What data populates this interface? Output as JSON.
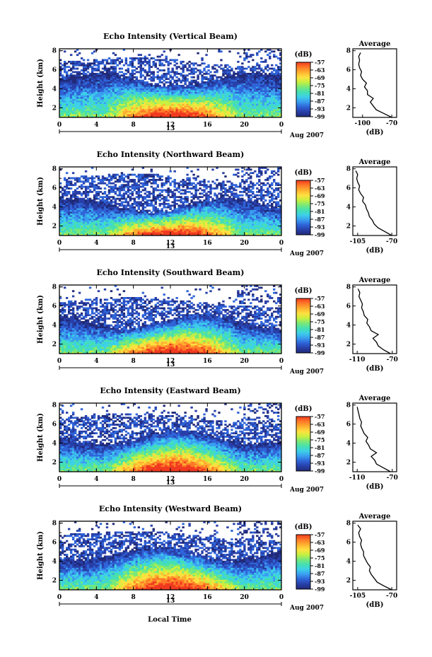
{
  "figure": {
    "xlabel": "Local Time"
  },
  "colorbar": {
    "unit": "(dB)",
    "ticks": [
      "-57",
      "-63",
      "-69",
      "-75",
      "-81",
      "-87",
      "-93",
      "-99"
    ],
    "colors": [
      "#202a78",
      "#283fa8",
      "#2f64d8",
      "#3a9ef0",
      "#3dd0e8",
      "#46e0b0",
      "#7ae878",
      "#c8f040",
      "#ffe040",
      "#ffb030",
      "#ff7a28",
      "#f03a20"
    ]
  },
  "chart_data": [
    {
      "type": "heatmap",
      "title": "Echo Intensity (Vertical Beam)",
      "ylabel": "Height (km)",
      "xticks": [
        "0",
        "4",
        "8",
        "12",
        "16",
        "20",
        "0"
      ],
      "yticks": [
        "2",
        "4",
        "6",
        "8"
      ],
      "day_label": "13",
      "date_label": "Aug 2007",
      "xlim": [
        0,
        24
      ],
      "ylim": [
        1,
        8.2
      ],
      "layers": {
        "ceil": 5.0,
        "sparse_top": 6.8
      },
      "profile": {
        "title": "Average",
        "xlabel": "(dB)",
        "xticks": [
          "-100",
          "-70"
        ],
        "xlim": [
          -110,
          -65
        ],
        "heights": [
          1.0,
          1.4,
          1.8,
          2.2,
          2.6,
          3.0,
          3.4,
          3.8,
          4.2,
          4.6,
          5.0,
          5.4,
          5.8,
          6.2,
          6.6,
          7.0,
          7.4,
          7.8
        ],
        "values": [
          -70,
          -78,
          -86,
          -89,
          -92,
          -89,
          -95,
          -95,
          -98,
          -96,
          -100,
          -102,
          -101,
          -103,
          -104,
          -103,
          -104,
          -102
        ]
      }
    },
    {
      "type": "heatmap",
      "title": "Echo Intensity (Northward Beam)",
      "ylabel": "Height (km)",
      "xticks": [
        "0",
        "4",
        "8",
        "12",
        "16",
        "20",
        "0"
      ],
      "yticks": [
        "2",
        "4",
        "6",
        "8"
      ],
      "day_label": "13",
      "date_label": "Aug 2007",
      "xlim": [
        0,
        24
      ],
      "ylim": [
        1,
        8.2
      ],
      "layers": {
        "ceil": 4.2,
        "sparse_top": 7.0
      },
      "profile": {
        "title": "Average",
        "xlabel": "(dB)",
        "xticks": [
          "-105",
          "-70"
        ],
        "xlim": [
          -110,
          -65
        ],
        "heights": [
          1.0,
          1.4,
          1.8,
          2.2,
          2.6,
          3.0,
          3.4,
          3.8,
          4.2,
          4.6,
          5.0,
          5.4,
          5.8,
          6.2,
          6.6,
          7.0,
          7.4,
          7.8
        ],
        "values": [
          -70,
          -77,
          -84,
          -88,
          -90,
          -93,
          -94,
          -96,
          -97,
          -100,
          -99,
          -102,
          -104,
          -103,
          -105,
          -106,
          -105,
          -107
        ]
      }
    },
    {
      "type": "heatmap",
      "title": "Echo Intensity (Southward Beam)",
      "ylabel": "Height (km)",
      "xticks": [
        "0",
        "4",
        "8",
        "12",
        "16",
        "20",
        "0"
      ],
      "yticks": [
        "2",
        "4",
        "6",
        "8"
      ],
      "day_label": "13",
      "date_label": "Aug 2007",
      "xlim": [
        0,
        24
      ],
      "ylim": [
        1,
        8.2
      ],
      "layers": {
        "ceil": 4.4,
        "sparse_top": 6.4
      },
      "profile": {
        "title": "Average",
        "xlabel": "(dB)",
        "xticks": [
          "-110",
          "-70"
        ],
        "xlim": [
          -115,
          -65
        ],
        "heights": [
          1.0,
          1.4,
          1.8,
          2.2,
          2.6,
          3.0,
          3.4,
          3.8,
          4.2,
          4.6,
          5.0,
          5.4,
          5.8,
          6.2,
          6.6,
          7.0,
          7.4,
          7.8
        ],
        "values": [
          -72,
          -80,
          -86,
          -88,
          -92,
          -86,
          -94,
          -96,
          -99,
          -98,
          -102,
          -103,
          -105,
          -104,
          -106,
          -108,
          -107,
          -109
        ]
      }
    },
    {
      "type": "heatmap",
      "title": "Echo Intensity (Eastward Beam)",
      "ylabel": "Height (km)",
      "xticks": [
        "0",
        "4",
        "8",
        "12",
        "16",
        "20",
        "0"
      ],
      "yticks": [
        "2",
        "4",
        "6",
        "8"
      ],
      "day_label": "13",
      "date_label": "Aug 2007",
      "xlim": [
        0,
        24
      ],
      "ylim": [
        1,
        8.2
      ],
      "layers": {
        "ceil": 4.6,
        "sparse_top": 6.6
      },
      "profile": {
        "title": "Average",
        "xlabel": "(dB)",
        "xticks": [
          "-110",
          "-70"
        ],
        "xlim": [
          -115,
          -65
        ],
        "heights": [
          1.0,
          1.4,
          1.8,
          2.2,
          2.6,
          3.0,
          3.4,
          3.8,
          4.2,
          4.6,
          5.0,
          5.4,
          5.8,
          6.2,
          6.6,
          7.0,
          7.4,
          7.8
        ],
        "values": [
          -72,
          -80,
          -88,
          -90,
          -94,
          -88,
          -95,
          -97,
          -100,
          -98,
          -102,
          -104,
          -106,
          -105,
          -107,
          -108,
          -109,
          -110
        ]
      }
    },
    {
      "type": "heatmap",
      "title": "Echo Intensity (Westward Beam)",
      "ylabel": "Height (km)",
      "xticks": [
        "0",
        "4",
        "8",
        "12",
        "16",
        "20",
        "0"
      ],
      "yticks": [
        "2",
        "4",
        "6",
        "8"
      ],
      "day_label": "13",
      "date_label": "Aug 2007",
      "xlim": [
        0,
        24
      ],
      "ylim": [
        1,
        8.2
      ],
      "layers": {
        "ceil": 4.8,
        "sparse_top": 6.7
      },
      "profile": {
        "title": "Average",
        "xlabel": "(dB)",
        "xticks": [
          "-105",
          "-70"
        ],
        "xlim": [
          -110,
          -65
        ],
        "heights": [
          1.0,
          1.4,
          1.8,
          2.2,
          2.6,
          3.0,
          3.4,
          3.8,
          4.2,
          4.6,
          5.0,
          5.4,
          5.8,
          6.2,
          6.6,
          7.0,
          7.4,
          7.8
        ],
        "values": [
          -70,
          -78,
          -85,
          -88,
          -91,
          -93,
          -92,
          -95,
          -97,
          -99,
          -99,
          -101,
          -102,
          -101,
          -103,
          -104,
          -102,
          -105
        ]
      }
    }
  ]
}
